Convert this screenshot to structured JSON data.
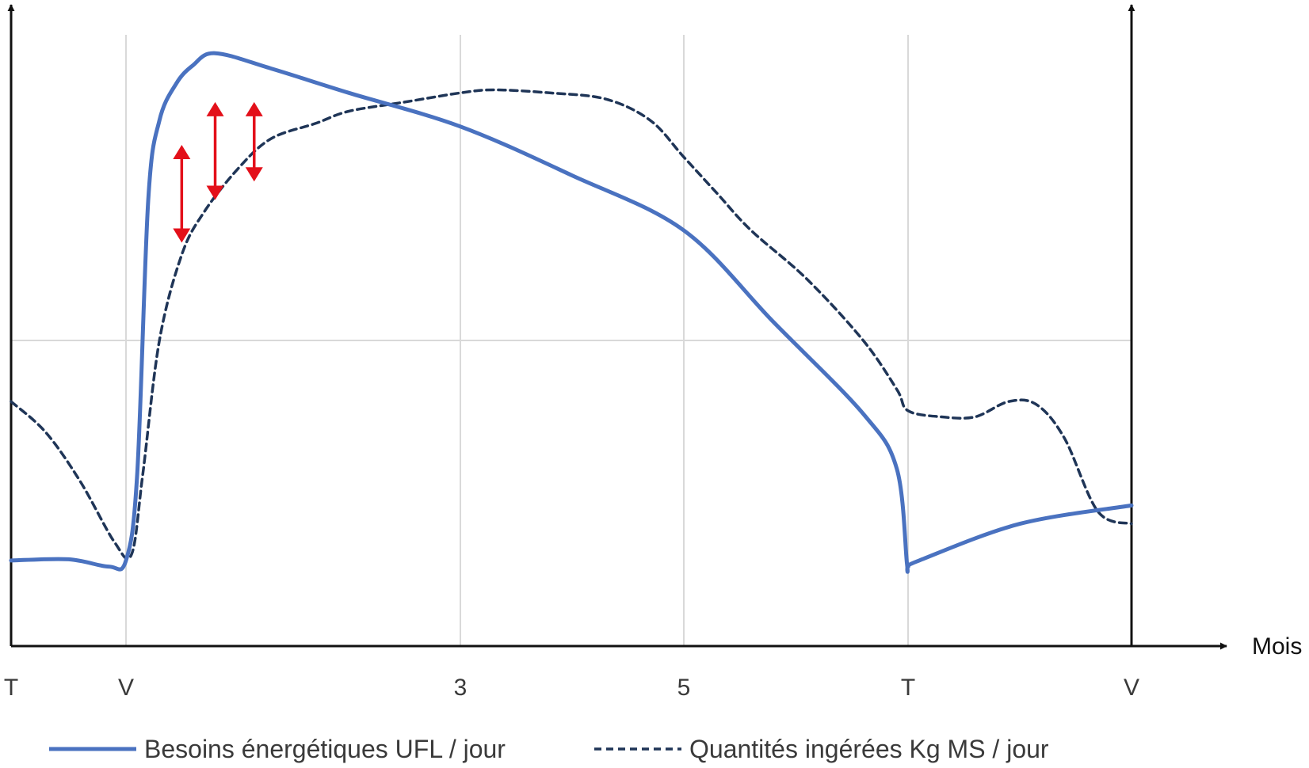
{
  "chart_data": {
    "type": "line",
    "xlabel": "Mois",
    "ylabel": "",
    "grid": true,
    "legend_position": "bottom",
    "x_ticks": [
      {
        "label": "T",
        "x": 0
      },
      {
        "label": "V",
        "x": 1
      },
      {
        "label": "3",
        "x": 4
      },
      {
        "label": "5",
        "x": 6
      },
      {
        "label": "T",
        "x": 8
      },
      {
        "label": "V",
        "x": 10
      }
    ],
    "xlim": [
      0,
      10
    ],
    "ylim": [
      0,
      100
    ],
    "colors": {
      "besoins": "#4a72c0",
      "quantites": "#1f3557",
      "arrows": "#e3101a",
      "grid": "#d9d9d9",
      "axis": "#111111"
    },
    "series": [
      {
        "name": "Besoins énergétiques UFL / jour",
        "style": "solid",
        "x": [
          0,
          0.5,
          0.85,
          1.0,
          1.1,
          1.2,
          1.3,
          1.45,
          1.6,
          1.8,
          2.3,
          3.0,
          4.0,
          5.0,
          6.0,
          6.8,
          7.6,
          7.9,
          7.99,
          8.0,
          8.1,
          9.0,
          10.0
        ],
        "values": [
          14,
          14.2,
          13,
          14,
          28,
          73,
          86,
          92,
          95,
          97,
          94.5,
          90.5,
          85,
          77,
          68,
          53,
          38,
          29,
          13.5,
          13,
          14,
          20,
          23
        ]
      },
      {
        "name": "Quantités ingérées Kg MS / jour",
        "style": "dashed",
        "x": [
          0,
          0.3,
          0.6,
          0.9,
          1.05,
          1.15,
          1.3,
          1.5,
          1.7,
          2.0,
          2.3,
          2.7,
          3.0,
          3.5,
          4.0,
          4.3,
          4.8,
          5.3,
          5.7,
          6.0,
          6.3,
          6.6,
          7.1,
          7.6,
          7.9,
          8.0,
          8.3,
          8.6,
          8.9,
          9.15,
          9.4,
          9.7,
          10.0
        ],
        "values": [
          40,
          35,
          27,
          17,
          15,
          28,
          50,
          64,
          71,
          78,
          83,
          85.5,
          87.5,
          89,
          90.5,
          91,
          90.5,
          89.5,
          86,
          80,
          74,
          68,
          60,
          50,
          42,
          38.5,
          37.5,
          37.5,
          40,
          39.5,
          34,
          22,
          20
        ]
      }
    ],
    "annotations": [
      {
        "type": "double-arrow",
        "x": 1.5,
        "y_from": 66,
        "y_to": 82
      },
      {
        "type": "double-arrow",
        "x": 1.8,
        "y_from": 73,
        "y_to": 89
      },
      {
        "type": "double-arrow",
        "x": 2.15,
        "y_from": 76,
        "y_to": 89
      }
    ]
  }
}
